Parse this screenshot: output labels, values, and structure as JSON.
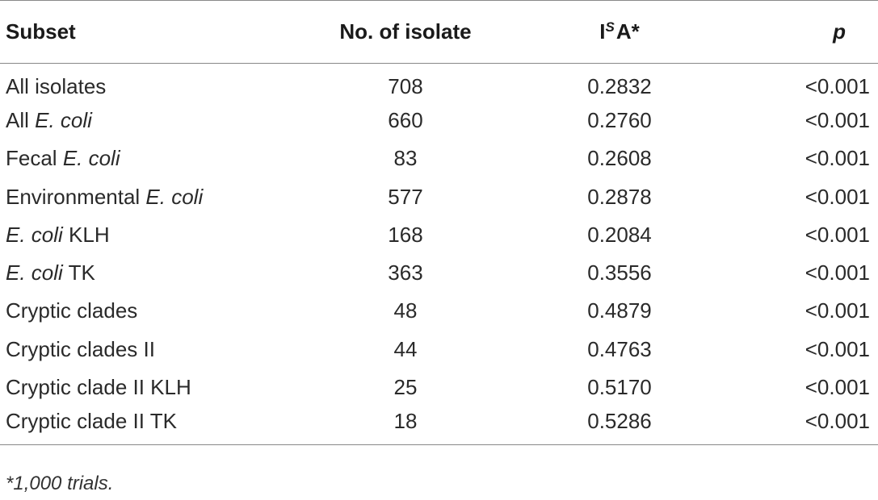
{
  "table": {
    "headers": {
      "subset": "Subset",
      "no_of_isolate": "No. of isolate",
      "isa_prefix": "I",
      "isa_sup": "S",
      "isa_suffix": "A*",
      "p": "p"
    },
    "rows": [
      {
        "subset_plain": "All isolates",
        "subset_italic": "",
        "subset_after": "",
        "n": "708",
        "isa": "0.2832",
        "p": "<0.001"
      },
      {
        "subset_plain": "All ",
        "subset_italic": "E. coli",
        "subset_after": "",
        "n": "660",
        "isa": "0.2760",
        "p": "<0.001"
      },
      {
        "subset_plain": "Fecal ",
        "subset_italic": "E. coli",
        "subset_after": "",
        "n": "83",
        "isa": "0.2608",
        "p": "<0.001"
      },
      {
        "subset_plain": "Environmental ",
        "subset_italic": "E. coli",
        "subset_after": "",
        "n": "577",
        "isa": "0.2878",
        "p": "<0.001"
      },
      {
        "subset_plain": "",
        "subset_italic": "E. coli",
        "subset_after": " KLH",
        "n": "168",
        "isa": "0.2084",
        "p": "<0.001"
      },
      {
        "subset_plain": "",
        "subset_italic": "E. coli",
        "subset_after": " TK",
        "n": "363",
        "isa": "0.3556",
        "p": "<0.001"
      },
      {
        "subset_plain": "Cryptic clades",
        "subset_italic": "",
        "subset_after": "",
        "n": "48",
        "isa": "0.4879",
        "p": "<0.001"
      },
      {
        "subset_plain": "Cryptic clades II",
        "subset_italic": "",
        "subset_after": "",
        "n": "44",
        "isa": "0.4763",
        "p": "<0.001"
      },
      {
        "subset_plain": "Cryptic clade II KLH",
        "subset_italic": "",
        "subset_after": "",
        "n": "25",
        "isa": "0.5170",
        "p": "<0.001"
      },
      {
        "subset_plain": "Cryptic clade II TK",
        "subset_italic": "",
        "subset_after": "",
        "n": "18",
        "isa": "0.5286",
        "p": "<0.001"
      }
    ]
  },
  "footnote": "*1,000 trials."
}
